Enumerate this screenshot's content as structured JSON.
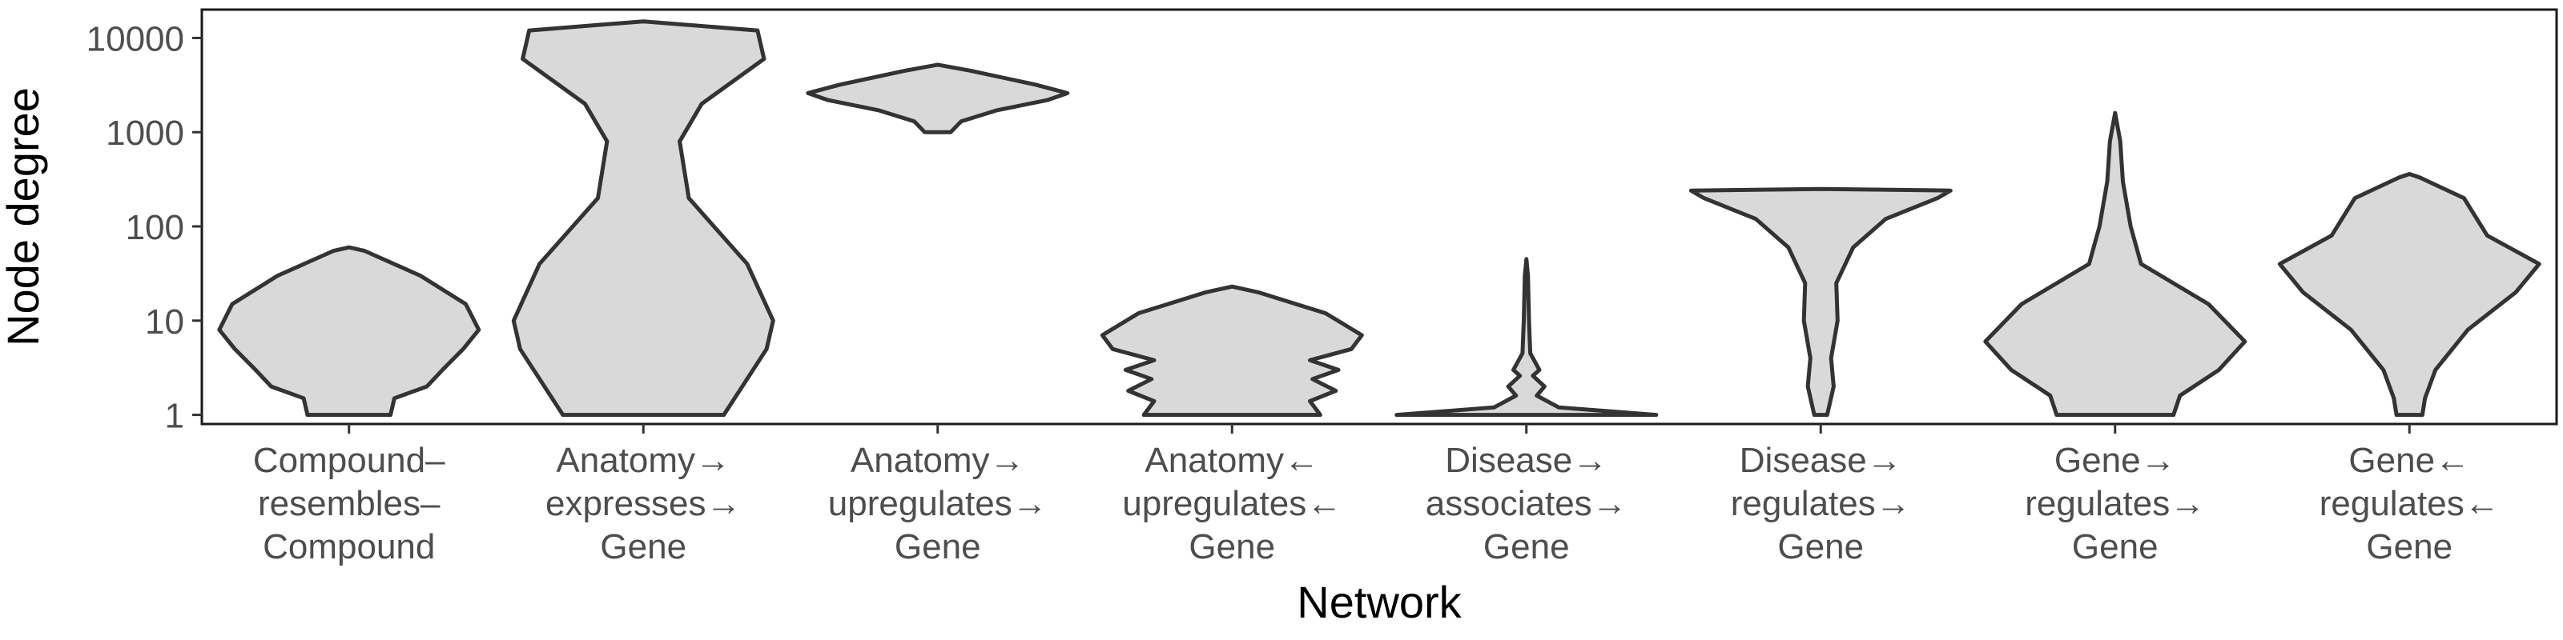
{
  "chart_data": {
    "type": "violin",
    "ylabel": "Node degree",
    "xlabel": "Network",
    "y_scale": "log10",
    "ylim": [
      0.8,
      20000
    ],
    "y_ticks": [
      1,
      10,
      100,
      1000,
      10000
    ],
    "y_tick_labels": [
      "1",
      "10",
      "100",
      "1000",
      "10000"
    ],
    "grid": false,
    "fill_color": "#d9d9d9",
    "stroke_color": "#333333",
    "categories": [
      {
        "lines": [
          "Compound–",
          "resembles–",
          "Compound"
        ]
      },
      {
        "lines": [
          "Anatomy→",
          "expresses→",
          "Gene"
        ]
      },
      {
        "lines": [
          "Anatomy→",
          "upregulates→",
          "Gene"
        ]
      },
      {
        "lines": [
          "Anatomy←",
          "upregulates←",
          "Gene"
        ]
      },
      {
        "lines": [
          "Disease→",
          "associates→",
          "Gene"
        ]
      },
      {
        "lines": [
          "Disease→",
          "regulates→",
          "Gene"
        ]
      },
      {
        "lines": [
          "Gene→",
          "regulates→",
          "Gene"
        ]
      },
      {
        "lines": [
          "Gene←",
          "regulates←",
          "Gene"
        ]
      }
    ],
    "series": [
      {
        "profile": [
          [
            1,
            0.32
          ],
          [
            1.5,
            0.35
          ],
          [
            2,
            0.6
          ],
          [
            3,
            0.72
          ],
          [
            5,
            0.88
          ],
          [
            8,
            1.0
          ],
          [
            15,
            0.9
          ],
          [
            30,
            0.55
          ],
          [
            55,
            0.12
          ],
          [
            60,
            0.0
          ]
        ]
      },
      {
        "profile": [
          [
            1,
            0.62
          ],
          [
            5,
            0.95
          ],
          [
            10,
            1.0
          ],
          [
            40,
            0.8
          ],
          [
            200,
            0.35
          ],
          [
            800,
            0.28
          ],
          [
            2000,
            0.45
          ],
          [
            6000,
            0.93
          ],
          [
            12000,
            0.88
          ],
          [
            15000,
            0.0
          ]
        ]
      },
      {
        "profile": [
          [
            1000,
            0.1
          ],
          [
            1300,
            0.18
          ],
          [
            1700,
            0.45
          ],
          [
            2200,
            0.85
          ],
          [
            2600,
            1.0
          ],
          [
            3200,
            0.75
          ],
          [
            4500,
            0.25
          ],
          [
            5200,
            0.0
          ]
        ]
      },
      {
        "profile": [
          [
            1,
            0.68
          ],
          [
            1.4,
            0.6
          ],
          [
            1.8,
            0.8
          ],
          [
            2.4,
            0.62
          ],
          [
            3,
            0.82
          ],
          [
            3.8,
            0.6
          ],
          [
            5,
            0.92
          ],
          [
            7,
            1.0
          ],
          [
            12,
            0.72
          ],
          [
            20,
            0.2
          ],
          [
            23,
            0.0
          ]
        ]
      },
      {
        "profile": [
          [
            1,
            1.0
          ],
          [
            1.2,
            0.25
          ],
          [
            1.6,
            0.08
          ],
          [
            2,
            0.14
          ],
          [
            2.6,
            0.05
          ],
          [
            3,
            0.1
          ],
          [
            4.5,
            0.03
          ],
          [
            10,
            0.02
          ],
          [
            30,
            0.012
          ],
          [
            45,
            0.0
          ]
        ]
      },
      {
        "profile": [
          [
            1,
            0.05
          ],
          [
            2,
            0.1
          ],
          [
            4,
            0.08
          ],
          [
            10,
            0.13
          ],
          [
            25,
            0.12
          ],
          [
            60,
            0.25
          ],
          [
            120,
            0.5
          ],
          [
            200,
            0.9
          ],
          [
            240,
            1.0
          ],
          [
            250,
            0.0
          ]
        ]
      },
      {
        "profile": [
          [
            1,
            0.45
          ],
          [
            1.6,
            0.5
          ],
          [
            3,
            0.8
          ],
          [
            6,
            1.0
          ],
          [
            15,
            0.72
          ],
          [
            40,
            0.2
          ],
          [
            100,
            0.12
          ],
          [
            300,
            0.06
          ],
          [
            800,
            0.04
          ],
          [
            1600,
            0.0
          ]
        ]
      },
      {
        "profile": [
          [
            1,
            0.1
          ],
          [
            1.5,
            0.12
          ],
          [
            3,
            0.2
          ],
          [
            8,
            0.45
          ],
          [
            20,
            0.82
          ],
          [
            40,
            1.0
          ],
          [
            80,
            0.6
          ],
          [
            200,
            0.42
          ],
          [
            330,
            0.08
          ],
          [
            360,
            0.0
          ]
        ]
      }
    ]
  }
}
